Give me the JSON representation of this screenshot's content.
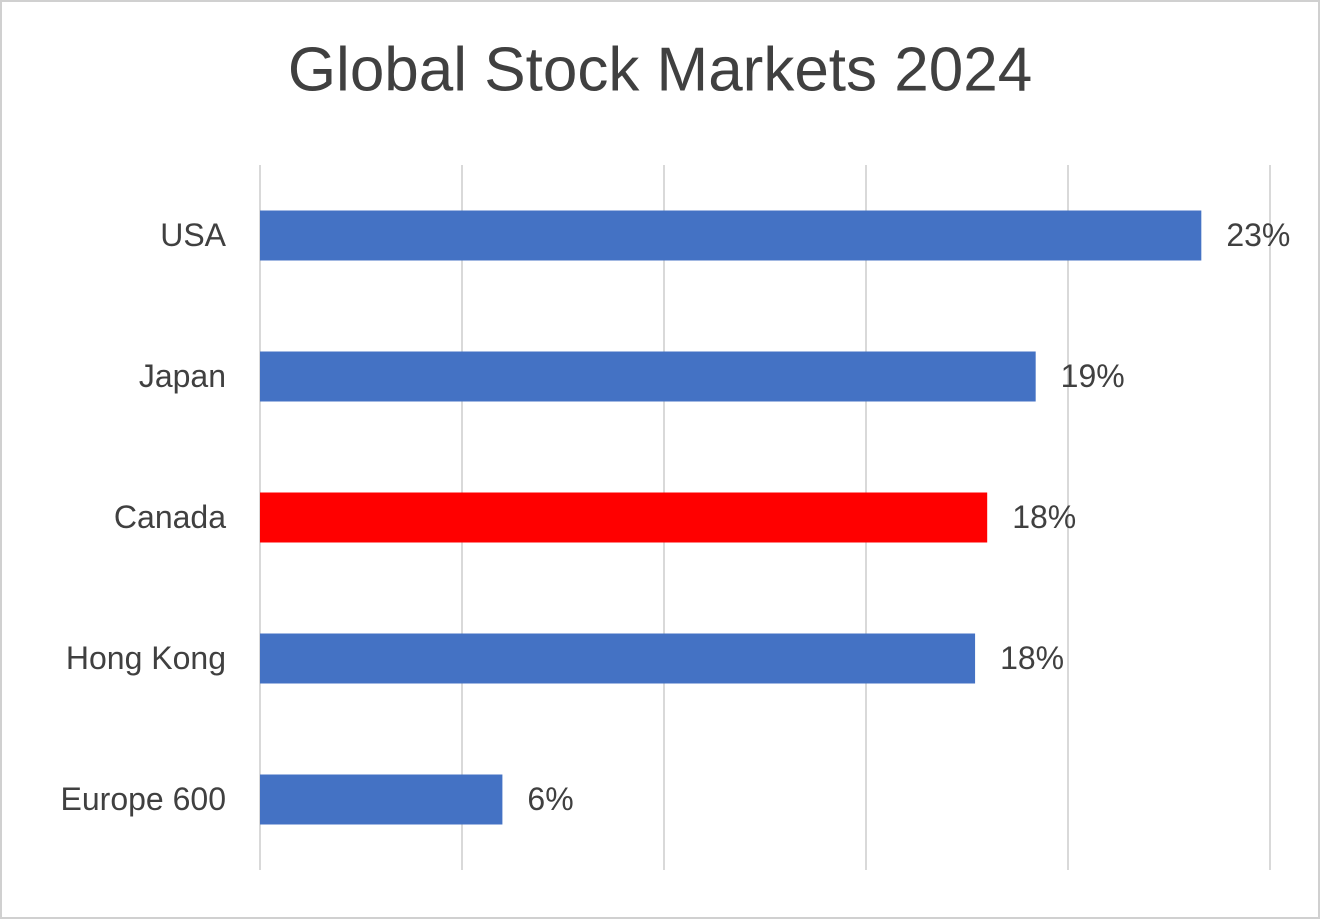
{
  "chart_data": {
    "type": "bar",
    "orientation": "horizontal",
    "title": "Global Stock Markets 2024",
    "categories": [
      "USA",
      "Japan",
      "Canada",
      "Hong Kong",
      "Europe 600"
    ],
    "values": [
      23.3,
      19.2,
      18.0,
      17.7,
      6.0
    ],
    "value_labels": [
      "23%",
      "19%",
      "18%",
      "18%",
      "6%"
    ],
    "colors": [
      "#4472c4",
      "#4472c4",
      "#ff0000",
      "#4472c4",
      "#4472c4"
    ],
    "xlim": [
      0,
      25
    ],
    "xticks": [
      0,
      5,
      10,
      15,
      20,
      25
    ],
    "grid": true
  }
}
